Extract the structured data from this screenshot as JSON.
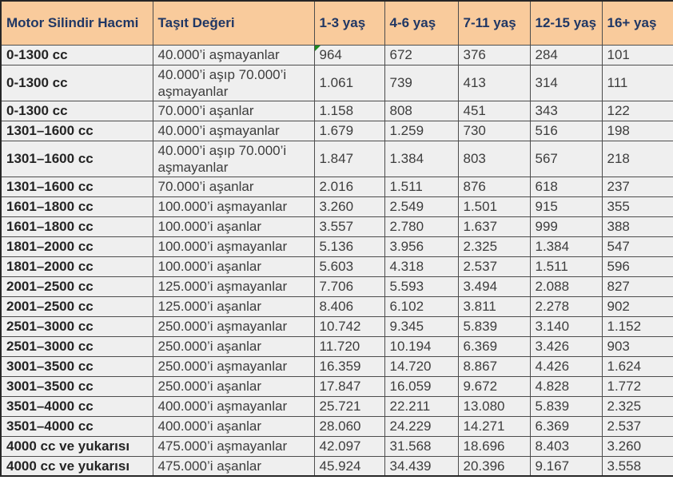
{
  "colors": {
    "header_bg": "#F9CB9C",
    "header_text": "#203764",
    "cell_bg": "#EFEFEF",
    "border": "#4D4D4D",
    "indicator": "#1E8A1E"
  },
  "table": {
    "columns": [
      "Motor Silindir Hacmi",
      "Taşıt Değeri",
      "1-3 yaş",
      "4-6 yaş",
      "7-11 yaş",
      "12-15 yaş",
      "16+ yaş"
    ],
    "rows": [
      {
        "engine": "0-1300 cc",
        "value_band": "40.000’i aşmayanlar",
        "amounts": [
          "964",
          "672",
          "376",
          "284",
          "101"
        ],
        "indicator": true
      },
      {
        "engine": "0-1300 cc",
        "value_band": "40.000’i aşıp 70.000’i aşmayanlar",
        "amounts": [
          "1.061",
          "739",
          "413",
          "314",
          "111"
        ]
      },
      {
        "engine": "0-1300 cc",
        "value_band": "70.000’i aşanlar",
        "amounts": [
          "1.158",
          "808",
          "451",
          "343",
          "122"
        ]
      },
      {
        "engine": "1301–1600 cc",
        "value_band": "40.000’i aşmayanlar",
        "amounts": [
          "1.679",
          "1.259",
          "730",
          "516",
          "198"
        ]
      },
      {
        "engine": "1301–1600 cc",
        "value_band": "40.000’i aşıp 70.000’i aşmayanlar",
        "amounts": [
          "1.847",
          "1.384",
          "803",
          "567",
          "218"
        ]
      },
      {
        "engine": "1301–1600 cc",
        "value_band": "70.000’i aşanlar",
        "amounts": [
          "2.016",
          "1.511",
          "876",
          "618",
          "237"
        ]
      },
      {
        "engine": "1601–1800 cc",
        "value_band": "100.000’i aşmayanlar",
        "amounts": [
          "3.260",
          "2.549",
          "1.501",
          "915",
          "355"
        ]
      },
      {
        "engine": "1601–1800 cc",
        "value_band": "100.000’i aşanlar",
        "amounts": [
          "3.557",
          "2.780",
          "1.637",
          "999",
          "388"
        ]
      },
      {
        "engine": "1801–2000 cc",
        "value_band": "100.000’i aşmayanlar",
        "amounts": [
          "5.136",
          "3.956",
          "2.325",
          "1.384",
          "547"
        ]
      },
      {
        "engine": "1801–2000 cc",
        "value_band": "100.000’i aşanlar",
        "amounts": [
          "5.603",
          "4.318",
          "2.537",
          "1.511",
          "596"
        ]
      },
      {
        "engine": "2001–2500 cc",
        "value_band": "125.000’i aşmayanlar",
        "amounts": [
          "7.706",
          "5.593",
          "3.494",
          "2.088",
          "827"
        ]
      },
      {
        "engine": "2001–2500 cc",
        "value_band": "125.000’i aşanlar",
        "amounts": [
          "8.406",
          "6.102",
          "3.811",
          "2.278",
          "902"
        ]
      },
      {
        "engine": "2501–3000 cc",
        "value_band": "250.000’i aşmayanlar",
        "amounts": [
          "10.742",
          "9.345",
          "5.839",
          "3.140",
          "1.152"
        ]
      },
      {
        "engine": "2501–3000 cc",
        "value_band": "250.000’i aşanlar",
        "amounts": [
          "11.720",
          "10.194",
          "6.369",
          "3.426",
          "903"
        ]
      },
      {
        "engine": "3001–3500 cc",
        "value_band": "250.000’i aşmayanlar",
        "amounts": [
          "16.359",
          "14.720",
          "8.867",
          "4.426",
          "1.624"
        ]
      },
      {
        "engine": "3001–3500 cc",
        "value_band": "250.000’i aşanlar",
        "amounts": [
          "17.847",
          "16.059",
          "9.672",
          "4.828",
          "1.772"
        ]
      },
      {
        "engine": "3501–4000 cc",
        "value_band": "400.000’i aşmayanlar",
        "amounts": [
          "25.721",
          "22.211",
          "13.080",
          "5.839",
          "2.325"
        ]
      },
      {
        "engine": "3501–4000 cc",
        "value_band": "400.000’i aşanlar",
        "amounts": [
          "28.060",
          "24.229",
          "14.271",
          "6.369",
          "2.537"
        ]
      },
      {
        "engine": "4000 cc ve yukarısı",
        "value_band": "475.000’i aşmayanlar",
        "amounts": [
          "42.097",
          "31.568",
          "18.696",
          "8.403",
          "3.260"
        ]
      },
      {
        "engine": "4000 cc ve yukarısı",
        "value_band": "475.000’i aşanlar",
        "amounts": [
          "45.924",
          "34.439",
          "20.396",
          "9.167",
          "3.558"
        ]
      }
    ]
  }
}
